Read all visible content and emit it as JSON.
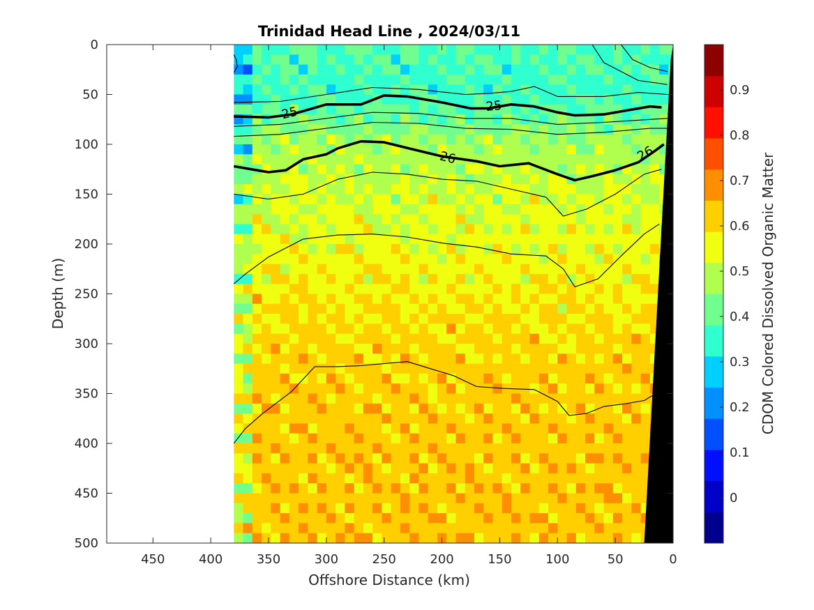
{
  "chart_data": {
    "type": "heatmap",
    "title": "Trinidad Head Line , 2024/03/11",
    "xlabel": "Offshore Distance (km)",
    "ylabel": "Depth (m)",
    "colorbar_label": "CDOM Colored Dissolved Organic Matter",
    "xlim": [
      490,
      0
    ],
    "ylim": [
      0,
      500
    ],
    "x_reversed": true,
    "y_reversed": true,
    "xticks": [
      450,
      400,
      350,
      300,
      250,
      200,
      150,
      100,
      50,
      0
    ],
    "yticks": [
      0,
      50,
      100,
      150,
      200,
      250,
      300,
      350,
      400,
      450,
      500
    ],
    "colorbar_ticks": [
      0,
      0.1,
      0.2,
      0.3,
      0.4,
      0.5,
      0.6,
      0.7,
      0.8,
      0.9
    ],
    "colorbar_range": [
      -0.1,
      1.0
    ],
    "colormap": [
      "#00008f",
      "#0000c8",
      "#0010ff",
      "#0050ff",
      "#0090ff",
      "#00d0ff",
      "#30ffcf",
      "#70ff8f",
      "#b0ff4f",
      "#f0ff0f",
      "#ffcf00",
      "#ff8f00",
      "#ff5000",
      "#ff1000",
      "#cf0000",
      "#8f0000"
    ],
    "data_extent_km": [
      0,
      380
    ],
    "section": {
      "distance_km": [
        380,
        350,
        300,
        250,
        200,
        150,
        100,
        50,
        0
      ],
      "depth_m": [
        0,
        50,
        100,
        150,
        200,
        250,
        300,
        350,
        400,
        450,
        500
      ],
      "cdom_profile": [
        0.38,
        0.36,
        0.47,
        0.52,
        0.55,
        0.58,
        0.61,
        0.62,
        0.63,
        0.63,
        0.63
      ]
    },
    "contour_labels": [
      "25",
      "25",
      "26",
      "26"
    ],
    "contours": [
      {
        "level": "25",
        "bold": true,
        "points": [
          [
            380,
            72
          ],
          [
            350,
            73
          ],
          [
            330,
            70
          ],
          [
            300,
            60
          ],
          [
            270,
            60
          ],
          [
            250,
            51
          ],
          [
            230,
            52
          ],
          [
            200,
            58
          ],
          [
            175,
            64
          ],
          [
            160,
            64
          ],
          [
            140,
            60
          ],
          [
            120,
            62
          ],
          [
            100,
            68
          ],
          [
            85,
            71
          ],
          [
            60,
            70
          ],
          [
            40,
            66
          ],
          [
            20,
            62
          ],
          [
            10,
            63
          ]
        ]
      },
      {
        "level": "26",
        "bold": true,
        "points": [
          [
            380,
            122
          ],
          [
            350,
            128
          ],
          [
            335,
            126
          ],
          [
            320,
            115
          ],
          [
            300,
            110
          ],
          [
            290,
            104
          ],
          [
            270,
            97
          ],
          [
            250,
            98
          ],
          [
            225,
            105
          ],
          [
            200,
            112
          ],
          [
            170,
            117
          ],
          [
            150,
            122
          ],
          [
            125,
            119
          ],
          [
            100,
            130
          ],
          [
            85,
            136
          ],
          [
            70,
            132
          ],
          [
            50,
            126
          ],
          [
            30,
            118
          ],
          [
            15,
            106
          ],
          [
            8,
            100
          ]
        ]
      },
      {
        "level": "",
        "bold": false,
        "points": [
          [
            380,
            58
          ],
          [
            340,
            57
          ],
          [
            300,
            50
          ],
          [
            260,
            43
          ],
          [
            220,
            45
          ],
          [
            180,
            50
          ],
          [
            160,
            49
          ],
          [
            140,
            47
          ],
          [
            120,
            42
          ],
          [
            100,
            52
          ],
          [
            60,
            52
          ],
          [
            30,
            48
          ],
          [
            5,
            50
          ]
        ]
      },
      {
        "level": "",
        "bold": false,
        "points": [
          [
            380,
            82
          ],
          [
            340,
            80
          ],
          [
            300,
            74
          ],
          [
            260,
            68
          ],
          [
            220,
            69
          ],
          [
            180,
            74
          ],
          [
            140,
            74
          ],
          [
            100,
            80
          ],
          [
            60,
            78
          ],
          [
            20,
            75
          ],
          [
            5,
            74
          ]
        ]
      },
      {
        "level": "",
        "bold": false,
        "points": [
          [
            380,
            92
          ],
          [
            340,
            90
          ],
          [
            300,
            84
          ],
          [
            260,
            78
          ],
          [
            220,
            79
          ],
          [
            180,
            84
          ],
          [
            140,
            85
          ],
          [
            100,
            90
          ],
          [
            60,
            88
          ],
          [
            20,
            84
          ],
          [
            5,
            84
          ]
        ]
      },
      {
        "level": "",
        "bold": false,
        "points": [
          [
            380,
            150
          ],
          [
            350,
            155
          ],
          [
            320,
            150
          ],
          [
            290,
            135
          ],
          [
            260,
            128
          ],
          [
            230,
            130
          ],
          [
            200,
            135
          ],
          [
            170,
            137
          ],
          [
            140,
            145
          ],
          [
            110,
            153
          ],
          [
            95,
            172
          ],
          [
            75,
            165
          ],
          [
            50,
            150
          ],
          [
            25,
            130
          ],
          [
            10,
            125
          ]
        ]
      },
      {
        "level": "",
        "bold": false,
        "points": [
          [
            380,
            240
          ],
          [
            370,
            230
          ],
          [
            350,
            213
          ],
          [
            320,
            195
          ],
          [
            290,
            191
          ],
          [
            260,
            190
          ],
          [
            230,
            193
          ],
          [
            200,
            199
          ],
          [
            170,
            203
          ],
          [
            140,
            210
          ],
          [
            110,
            212
          ],
          [
            95,
            225
          ],
          [
            85,
            243
          ],
          [
            65,
            235
          ],
          [
            45,
            212
          ],
          [
            25,
            190
          ],
          [
            12,
            180
          ]
        ]
      },
      {
        "level": "",
        "bold": false,
        "points": [
          [
            380,
            400
          ],
          [
            370,
            385
          ],
          [
            355,
            370
          ],
          [
            330,
            348
          ],
          [
            310,
            323
          ],
          [
            290,
            323
          ],
          [
            270,
            322
          ],
          [
            250,
            320
          ],
          [
            230,
            318
          ],
          [
            210,
            325
          ],
          [
            190,
            332
          ],
          [
            170,
            343
          ],
          [
            145,
            345
          ],
          [
            120,
            346
          ],
          [
            100,
            358
          ],
          [
            90,
            372
          ],
          [
            75,
            370
          ],
          [
            60,
            363
          ],
          [
            40,
            360
          ],
          [
            25,
            357
          ],
          [
            15,
            350
          ]
        ]
      },
      {
        "level": "",
        "bold": false,
        "points": [
          [
            380,
            28
          ],
          [
            377,
            22
          ],
          [
            378,
            15
          ],
          [
            380,
            10
          ]
        ]
      },
      {
        "level": "",
        "bold": false,
        "points": [
          [
            45,
            0
          ],
          [
            35,
            15
          ],
          [
            20,
            23
          ],
          [
            5,
            27
          ]
        ]
      },
      {
        "level": "",
        "bold": false,
        "points": [
          [
            70,
            0
          ],
          [
            60,
            18
          ],
          [
            30,
            36
          ],
          [
            5,
            40
          ]
        ]
      }
    ],
    "bathymetry": {
      "color": "#000000",
      "points": [
        [
          0,
          0
        ],
        [
          0,
          500
        ],
        [
          25,
          500
        ],
        [
          2,
          15
        ]
      ]
    }
  }
}
